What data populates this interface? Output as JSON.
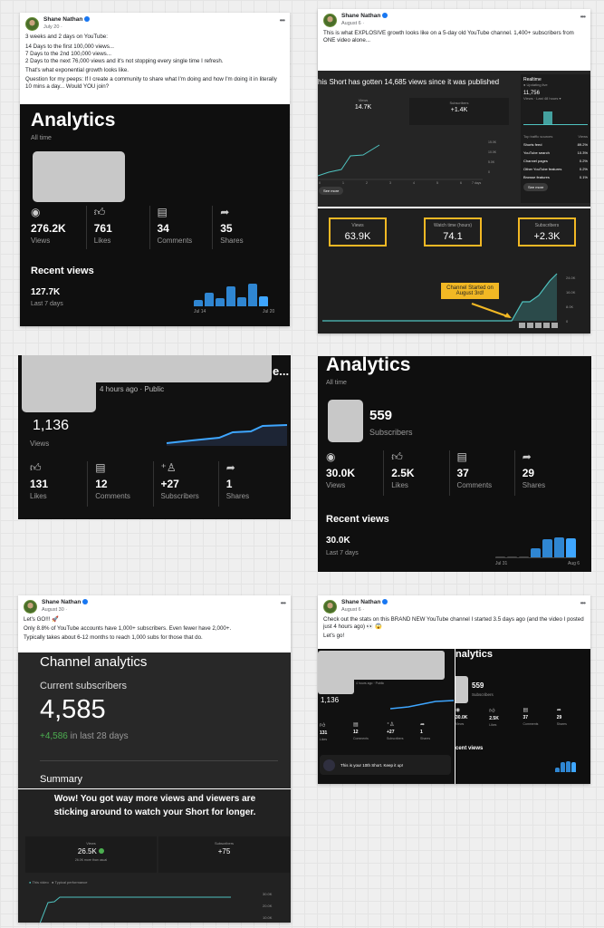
{
  "author": "Shane Nathan",
  "posts": [
    {
      "date": "July 20 ·",
      "lines": [
        "3 weeks and 2 days on YouTube:",
        "14 Days to the first 100,000 views...",
        "7 Days to the 2nd 100,000 views...",
        "2 Days to the next 76,000 views and it's not stopping every single time I refresh.",
        "That's what exponential growth looks like.",
        "Question for my peeps: If I create a community to share what I'm doing and how I'm doing it in literally 10 mins a day... Would YOU join?"
      ]
    },
    {
      "date": "August 6 ·",
      "lines": [
        "This is what EXPLOSIVE growth looks like on a 5-day old YouTube channel. 1,400+ subscribers from ONE video alone..."
      ]
    },
    {
      "date": "August 30 ·",
      "lines": [
        "Let's GO!!! 🚀",
        "Only 8.8% of YouTube accounts have 1,000+ subscribers. Even fewer have 2,000+.",
        "Typically takes about 6-12 months to reach 1,000 subs for those that do."
      ]
    },
    {
      "date": "August 6 ·",
      "lines": [
        "Check out the stats on this BRAND NEW YouTube channel I started 3.5 days ago (and the video I posted just 4 hours ago) 👀 😱",
        "Let's go!"
      ]
    }
  ],
  "analytics1": {
    "title": "Analytics",
    "period": "All time",
    "stats": [
      {
        "icon": "eye",
        "value": "276.2K",
        "label": "Views"
      },
      {
        "icon": "thumb",
        "value": "761",
        "label": "Likes"
      },
      {
        "icon": "comment",
        "value": "34",
        "label": "Comments"
      },
      {
        "icon": "share",
        "value": "35",
        "label": "Shares"
      }
    ],
    "recent_title": "Recent views",
    "recent_value": "127.7K",
    "recent_period": "Last 7 days",
    "bars": [
      0.3,
      0.6,
      0.35,
      0.9,
      0.4,
      1.0,
      0.45
    ],
    "x_start": "Jul 14",
    "x_end": "Jul 20"
  },
  "short_stats": {
    "headline": "his Short has gotten 14,685 views since it was published",
    "views_label": "Views",
    "views": "14.7K",
    "subs_label": "Subscribers",
    "subs": "+1.4K",
    "see_more": "See more",
    "realtime": {
      "title": "Realtime",
      "sub": "● Updating live",
      "value": "11,756",
      "period": "Views · Last 48 hours ▾",
      "sources_header": "Top traffic sources",
      "sources_col": "Views",
      "sources": [
        [
          "Shorts feed",
          "89.2%"
        ],
        [
          "YouTube search",
          "10.3%"
        ],
        [
          "Channel pages",
          "0.2%"
        ],
        [
          "Other YouTube features",
          "0.2%"
        ],
        [
          "Browse features",
          "0.1%"
        ]
      ],
      "see_more": "See more"
    },
    "y_ticks": [
      "15.0K",
      "10.0K",
      "5.0K",
      "0"
    ],
    "x_ticks": [
      "0",
      "1",
      "2",
      "3",
      "4",
      "5",
      "6",
      "7 days"
    ]
  },
  "channel_growth": {
    "boxes": [
      {
        "label": "Views",
        "value": "63.9K"
      },
      {
        "label": "Watch time (hours)",
        "value": "74.1"
      },
      {
        "label": "Subscribers",
        "value": "+2.3K"
      }
    ],
    "annotation": "Channel Started on August 3rd!",
    "y_ticks": [
      "24.0K",
      "16.0K",
      "8.0K",
      "0"
    ],
    "highlight": "#f2b824"
  },
  "video": {
    "meta": "4 hours ago · Public",
    "title_tail": "e...",
    "views": "1,136",
    "views_label": "Views",
    "stats": [
      {
        "icon": "thumb",
        "value": "131",
        "label": "Likes"
      },
      {
        "icon": "comment",
        "value": "12",
        "label": "Comments"
      },
      {
        "icon": "person-add",
        "value": "+27",
        "label": "Subscribers"
      },
      {
        "icon": "share",
        "value": "1",
        "label": "Shares"
      }
    ],
    "toast": "This is your 10th Short. Keep it up!"
  },
  "analytics2": {
    "title": "Analytics",
    "period": "All time",
    "subs": "559",
    "subs_label": "Subscribers",
    "stats": [
      {
        "icon": "eye",
        "value": "30.0K",
        "label": "Views"
      },
      {
        "icon": "thumb",
        "value": "2.5K",
        "label": "Likes"
      },
      {
        "icon": "comment",
        "value": "37",
        "label": "Comments"
      },
      {
        "icon": "share",
        "value": "29",
        "label": "Shares"
      }
    ],
    "recent_title": "Recent views",
    "recent_value": "30.0K",
    "recent_period": "Last 7 days",
    "bars": [
      0,
      0,
      0,
      0.45,
      0.9,
      1.0,
      0.95
    ],
    "x_start": "Jul 31",
    "x_end": "Aug 6"
  },
  "channel_analytics": {
    "title": "Channel analytics",
    "current_label": "Current subscribers",
    "current": "4,585",
    "delta": "+4,586",
    "delta_period": "in last 28 days",
    "summary": "Summary",
    "positive": "#4caf50"
  },
  "short_summary": {
    "headline": "Wow! You got way more views and viewers are sticking around to watch your Short for longer.",
    "views_label": "Views",
    "views": "26.5K",
    "views_note": "26.0K more than usual",
    "subs_label": "Subscribers",
    "subs": "+75",
    "legend": [
      "This video",
      "Typical performance"
    ],
    "y_ticks": [
      "30.0K",
      "20.0K",
      "10.0K"
    ]
  }
}
